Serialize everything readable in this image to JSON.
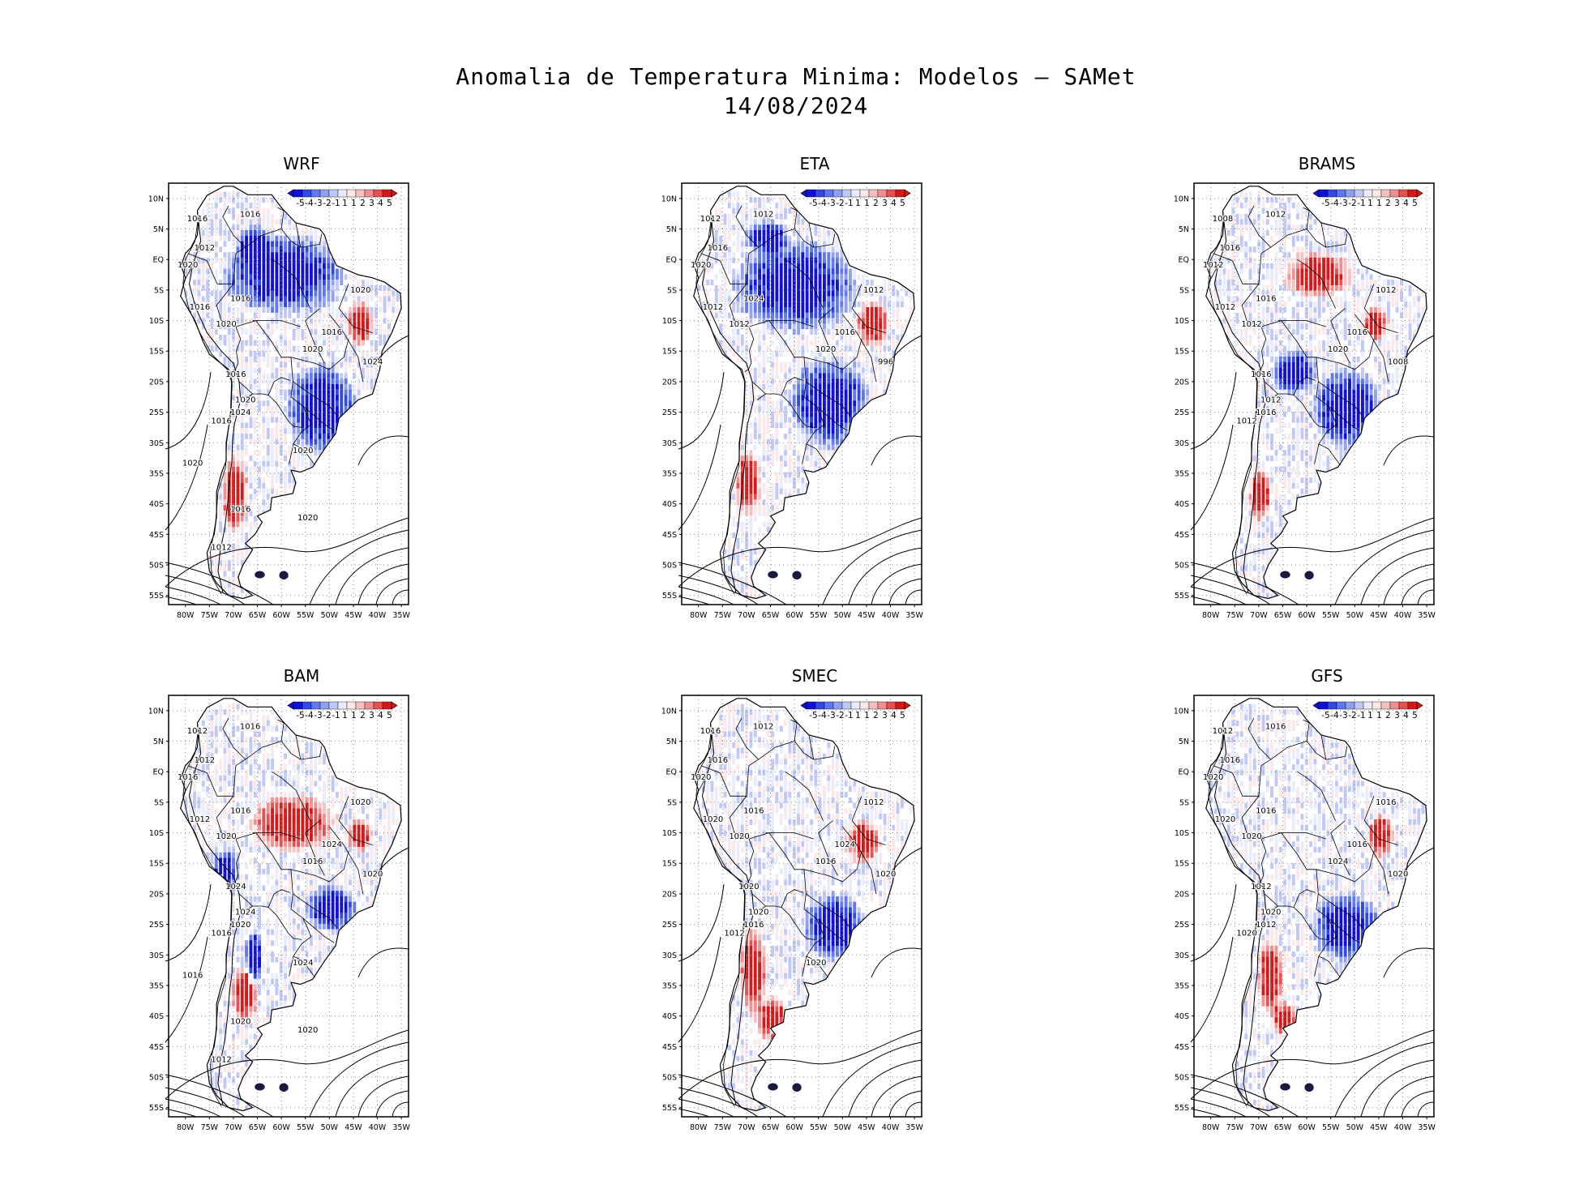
{
  "title_line1": "Anomalia de Temperatura Minima: Modelos — SAMet",
  "title_line2": "14/08/2024",
  "colorbar": {
    "labels": [
      "-5",
      "-4",
      "-3",
      "-2",
      "-1",
      "1",
      "1",
      "2",
      "3",
      "4",
      "5"
    ],
    "colors": [
      "#1010d8",
      "#3048e8",
      "#6078f0",
      "#90a0f0",
      "#c0c8f8",
      "#e8ecfc",
      "#fce8e8",
      "#f8c0c0",
      "#f09090",
      "#e85050",
      "#d81818"
    ]
  },
  "lat_ticks": [
    "10N",
    "5N",
    "EQ",
    "5S",
    "10S",
    "15S",
    "20S",
    "25S",
    "30S",
    "35S",
    "40S",
    "45S",
    "50S",
    "55S"
  ],
  "lon_ticks": [
    "80W",
    "75W",
    "70W",
    "65W",
    "60W",
    "55W",
    "50W",
    "45W",
    "40W",
    "35W"
  ],
  "panels": [
    {
      "name": "WRF",
      "contour_labels": [
        "1016",
        "1016",
        "1012",
        "1020",
        "1016",
        "1016",
        "1020",
        "1020",
        "1016",
        "1020",
        "1024",
        "1016",
        "1020",
        "1024",
        "1016",
        "1020",
        "1020",
        "1016",
        "1020",
        "1012"
      ]
    },
    {
      "name": "ETA",
      "contour_labels": [
        "1012",
        "1012",
        "1016",
        "1020",
        "1012",
        "1024",
        "1012",
        "1020",
        "1016",
        "1012",
        "996"
      ]
    },
    {
      "name": "BRAMS",
      "contour_labels": [
        "1008",
        "1012",
        "1016",
        "1012",
        "1012",
        "1016",
        "1012",
        "1020",
        "1016",
        "1012",
        "1008",
        "1016",
        "1012",
        "1016",
        "1012"
      ]
    },
    {
      "name": "BAM",
      "contour_labels": [
        "1012",
        "1016",
        "1012",
        "1016",
        "1012",
        "1016",
        "1020",
        "1016",
        "1024",
        "1020",
        "1020",
        "1024",
        "1024",
        "1020",
        "1016",
        "1024",
        "1016",
        "1020",
        "1020",
        "1012"
      ]
    },
    {
      "name": "SMEC",
      "contour_labels": [
        "1016",
        "1012",
        "1016",
        "1020",
        "1020",
        "1016",
        "1020",
        "1016",
        "1024",
        "1012",
        "1020",
        "1020",
        "1020",
        "1016",
        "1012",
        "1020"
      ]
    },
    {
      "name": "GFS",
      "contour_labels": [
        "1012",
        "1016",
        "1016",
        "1020",
        "1020",
        "1016",
        "1020",
        "1024",
        "1016",
        "1016",
        "1020",
        "1012",
        "1020",
        "1012",
        "1020"
      ]
    }
  ]
}
